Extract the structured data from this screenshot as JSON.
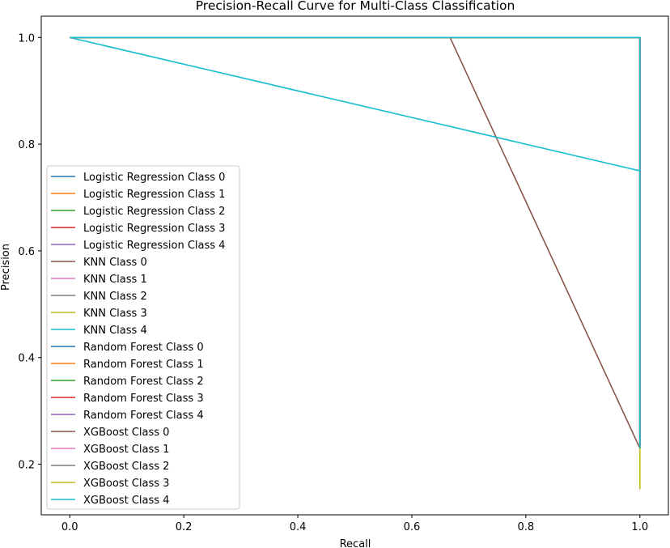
{
  "chart_data": {
    "type": "line",
    "title": "Precision-Recall Curve for Multi-Class Classification",
    "xlabel": "Recall",
    "ylabel": "Precision",
    "xlim": [
      -0.05,
      1.05
    ],
    "ylim": [
      0.105,
      1.04
    ],
    "xticks": [
      0.0,
      0.2,
      0.4,
      0.6,
      0.8,
      1.0
    ],
    "yticks": [
      0.2,
      0.4,
      0.6,
      0.8,
      1.0
    ],
    "xtick_labels": [
      "0.0",
      "0.2",
      "0.4",
      "0.6",
      "0.8",
      "1.0"
    ],
    "ytick_labels": [
      "0.2",
      "0.4",
      "0.6",
      "0.8",
      "1.0"
    ],
    "grid": false,
    "legend_position": "lower-left",
    "series": [
      {
        "name": "Logistic Regression Class 0",
        "color": "#1f77b4",
        "x": [
          0.0,
          1.0,
          1.0
        ],
        "y": [
          1.0,
          1.0,
          0.23
        ]
      },
      {
        "name": "Logistic Regression Class 1",
        "color": "#ff7f0e",
        "x": [
          0.0,
          1.0,
          1.0
        ],
        "y": [
          1.0,
          1.0,
          0.23
        ]
      },
      {
        "name": "Logistic Regression Class 2",
        "color": "#2ca02c",
        "x": [
          0.0,
          1.0,
          1.0
        ],
        "y": [
          1.0,
          1.0,
          0.23
        ]
      },
      {
        "name": "Logistic Regression Class 3",
        "color": "#d62728",
        "x": [
          0.0,
          1.0,
          1.0
        ],
        "y": [
          1.0,
          1.0,
          0.23
        ]
      },
      {
        "name": "Logistic Regression Class 4",
        "color": "#9467bd",
        "x": [
          0.0,
          1.0,
          1.0
        ],
        "y": [
          1.0,
          1.0,
          0.23
        ]
      },
      {
        "name": "KNN Class 0",
        "color": "#8c564b",
        "x": [
          0.0,
          0.667,
          1.0
        ],
        "y": [
          1.0,
          1.0,
          0.23
        ]
      },
      {
        "name": "KNN Class 1",
        "color": "#e377c2",
        "x": [
          0.0,
          1.0,
          1.0
        ],
        "y": [
          1.0,
          1.0,
          0.23
        ]
      },
      {
        "name": "KNN Class 2",
        "color": "#7f7f7f",
        "x": [
          0.0,
          1.0,
          1.0
        ],
        "y": [
          1.0,
          1.0,
          0.23
        ]
      },
      {
        "name": "KNN Class 3",
        "color": "#bcbd22",
        "x": [
          0.0,
          1.0,
          1.0
        ],
        "y": [
          1.0,
          1.0,
          0.153
        ]
      },
      {
        "name": "KNN Class 4",
        "color": "#17becf",
        "x": [
          0.0,
          1.0,
          1.0
        ],
        "y": [
          1.0,
          0.75,
          0.23
        ]
      },
      {
        "name": "Random Forest Class 0",
        "color": "#1f77b4",
        "x": [
          0.0,
          1.0,
          1.0
        ],
        "y": [
          1.0,
          1.0,
          0.23
        ]
      },
      {
        "name": "Random Forest Class 1",
        "color": "#ff7f0e",
        "x": [
          0.0,
          1.0,
          1.0
        ],
        "y": [
          1.0,
          1.0,
          0.23
        ]
      },
      {
        "name": "Random Forest Class 2",
        "color": "#2ca02c",
        "x": [
          0.0,
          1.0,
          1.0
        ],
        "y": [
          1.0,
          1.0,
          0.23
        ]
      },
      {
        "name": "Random Forest Class 3",
        "color": "#d62728",
        "x": [
          0.0,
          1.0,
          1.0
        ],
        "y": [
          1.0,
          1.0,
          0.23
        ]
      },
      {
        "name": "Random Forest Class 4",
        "color": "#9467bd",
        "x": [
          0.0,
          1.0,
          1.0
        ],
        "y": [
          1.0,
          1.0,
          0.23
        ]
      },
      {
        "name": "XGBoost Class 0",
        "color": "#8c564b",
        "x": [
          0.0,
          1.0,
          1.0
        ],
        "y": [
          1.0,
          1.0,
          0.23
        ]
      },
      {
        "name": "XGBoost Class 1",
        "color": "#e377c2",
        "x": [
          0.0,
          1.0,
          1.0
        ],
        "y": [
          1.0,
          1.0,
          0.23
        ]
      },
      {
        "name": "XGBoost Class 2",
        "color": "#7f7f7f",
        "x": [
          0.0,
          1.0,
          1.0
        ],
        "y": [
          1.0,
          1.0,
          0.23
        ]
      },
      {
        "name": "XGBoost Class 3",
        "color": "#bcbd22",
        "x": [
          0.0,
          1.0,
          1.0
        ],
        "y": [
          1.0,
          1.0,
          0.153
        ]
      },
      {
        "name": "XGBoost Class 4",
        "color": "#17becf",
        "x": [
          0.0,
          1.0,
          1.0
        ],
        "y": [
          1.0,
          1.0,
          0.23
        ]
      }
    ]
  }
}
